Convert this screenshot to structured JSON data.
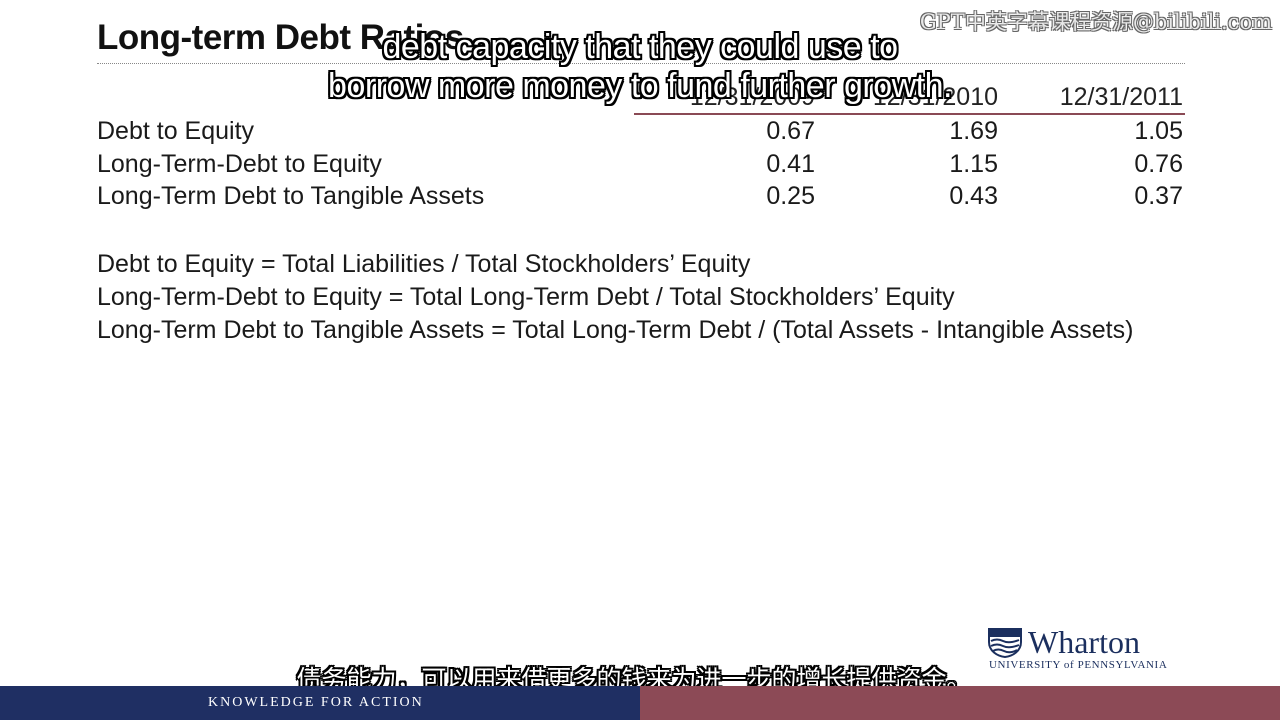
{
  "slide": {
    "title": "Long-term Debt Ratios",
    "columns": [
      "12/31/2009",
      "12/31/2010",
      "12/31/2011"
    ],
    "rows": [
      {
        "label": "Debt to Equity",
        "values": [
          "0.67",
          "1.69",
          "1.05"
        ]
      },
      {
        "label": "Long-Term-Debt to Equity",
        "values": [
          "0.41",
          "1.15",
          "0.76"
        ]
      },
      {
        "label": "Long-Term Debt to Tangible Assets",
        "values": [
          "0.25",
          "0.43",
          "0.37"
        ]
      }
    ],
    "formulas": [
      "Debt to Equity = Total Liabilities / Total Stockholders’ Equity",
      "Long-Term-Debt to Equity = Total Long-Term Debt / Total Stockholders’ Equity",
      "Long-Term Debt to Tangible Assets = Total Long-Term Debt / (Total Assets - Intangible Assets)"
    ]
  },
  "subtitles": {
    "english_line1": "debt capacity that they could use to",
    "english_line2": "borrow more money to fund further growth.",
    "chinese": "债务能力，可以用来借更多的钱来为进一步的增长提供资金。"
  },
  "watermark": "GPT中英字幕课程资源@bilibili.com",
  "branding": {
    "logo_word": "Wharton",
    "logo_subtitle": "UNIVERSITY of PENNSYLVANIA",
    "footer_text": "KNOWLEDGE FOR ACTION",
    "colors": {
      "navy": "#1f2f63",
      "maroon": "#8c4a56"
    }
  }
}
